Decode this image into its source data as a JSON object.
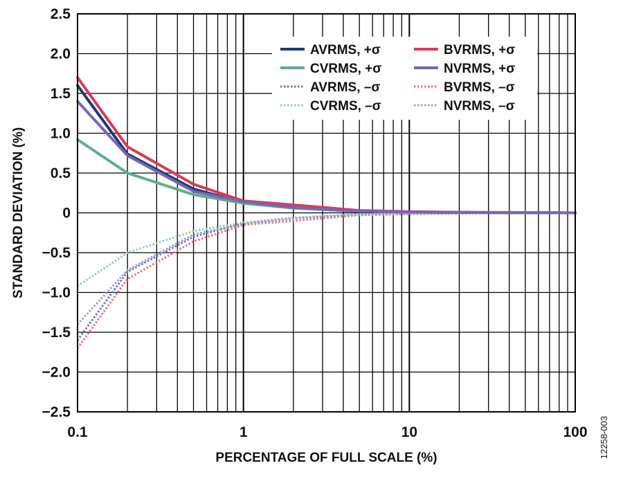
{
  "chart_data": {
    "type": "line",
    "xlabel": "PERCENTAGE OF FULL SCALE (%)",
    "ylabel": "STANDARD DEVIATION (%)",
    "xscale": "log",
    "xlim": [
      0.1,
      100
    ],
    "ylim": [
      -2.5,
      2.5
    ],
    "grid": true,
    "legend_position": "top-right",
    "x_ticks": [
      {
        "value": 0.1,
        "label": "0.1"
      },
      {
        "value": 1,
        "label": "1"
      },
      {
        "value": 10,
        "label": "10"
      },
      {
        "value": 100,
        "label": "100"
      }
    ],
    "y_ticks": [
      {
        "value": 2.5,
        "label": "2.5"
      },
      {
        "value": 2.0,
        "label": "2.0"
      },
      {
        "value": 1.5,
        "label": "1.5"
      },
      {
        "value": 1.0,
        "label": "1.0"
      },
      {
        "value": 0.5,
        "label": "0.5"
      },
      {
        "value": 0,
        "label": "0"
      },
      {
        "value": -0.5,
        "label": "−0.5"
      },
      {
        "value": -1.0,
        "label": "−1.0"
      },
      {
        "value": -1.5,
        "label": "−1.5"
      },
      {
        "value": -2.0,
        "label": "−2.0"
      },
      {
        "value": -2.5,
        "label": "−2.5"
      }
    ],
    "x": [
      0.1,
      0.2,
      0.5,
      1,
      2,
      5,
      10,
      20,
      50,
      100
    ],
    "series": [
      {
        "name": "AVRMS, +σ",
        "color": "#1b3a78",
        "style": "solid",
        "values": [
          1.6,
          0.74,
          0.3,
          0.13,
          0.06,
          0.02,
          0.01,
          0.005,
          0.003,
          0.0
        ]
      },
      {
        "name": "BVRMS, +σ",
        "color": "#d93a56",
        "style": "solid",
        "values": [
          1.7,
          0.83,
          0.36,
          0.15,
          0.1,
          0.03,
          0.015,
          0.008,
          0.004,
          0.0
        ]
      },
      {
        "name": "CVRMS, +σ",
        "color": "#5fae8a",
        "style": "solid",
        "values": [
          0.92,
          0.5,
          0.23,
          0.12,
          0.06,
          0.02,
          0.01,
          0.005,
          0.003,
          0.0
        ]
      },
      {
        "name": "NVRMS, +σ",
        "color": "#7b63b4",
        "style": "solid",
        "values": [
          1.4,
          0.72,
          0.27,
          0.14,
          0.07,
          0.02,
          0.01,
          0.005,
          0.003,
          0.0
        ]
      },
      {
        "name": "AVRMS, –σ",
        "color": "#5b7ab8",
        "style": "dotted",
        "values": [
          -1.6,
          -0.74,
          -0.3,
          -0.13,
          -0.06,
          -0.02,
          -0.01,
          -0.005,
          -0.003,
          0.0
        ]
      },
      {
        "name": "BVRMS, –σ",
        "color": "#ec6f80",
        "style": "dotted",
        "values": [
          -1.7,
          -0.83,
          -0.36,
          -0.15,
          -0.1,
          -0.03,
          -0.015,
          -0.008,
          -0.004,
          0.0
        ]
      },
      {
        "name": "CVRMS, –σ",
        "color": "#8fd0ad",
        "style": "dotted",
        "values": [
          -0.92,
          -0.5,
          -0.23,
          -0.12,
          -0.06,
          -0.02,
          -0.01,
          -0.005,
          -0.003,
          0.0
        ]
      },
      {
        "name": "NVRMS, –σ",
        "color": "#a897d2",
        "style": "dotted",
        "values": [
          -1.4,
          -0.72,
          -0.27,
          -0.14,
          -0.07,
          -0.02,
          -0.01,
          -0.005,
          -0.003,
          0.0
        ]
      }
    ]
  },
  "figure_id": "12258-003"
}
